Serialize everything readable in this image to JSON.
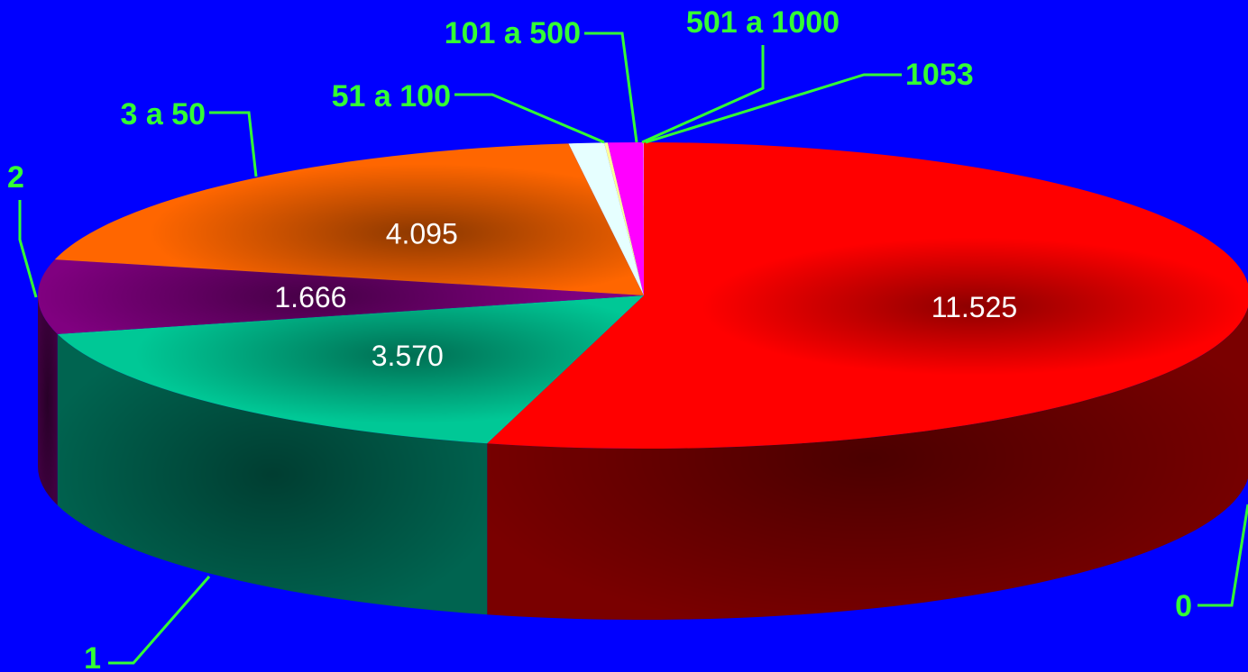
{
  "chart_data": {
    "type": "pie",
    "style": "3d",
    "title": "",
    "slices": [
      {
        "category": "0",
        "value": 11525,
        "value_label": "11.525",
        "color": "#ff0000",
        "side_color": "#7a0000"
      },
      {
        "category": "1",
        "value": 3570,
        "value_label": "3.570",
        "color": "#00c896",
        "side_color": "#006450"
      },
      {
        "category": "2",
        "value": 1666,
        "value_label": "1.666",
        "color": "#800080",
        "side_color": "#400040"
      },
      {
        "category": "3 a 50",
        "value": 4095,
        "value_label": "4.095",
        "color": "#ff6600",
        "side_color": "#803300"
      },
      {
        "category": "51 a 100",
        "value": 200,
        "value_label": "",
        "color": "#e6ffff",
        "side_color": "#9ac8c8"
      },
      {
        "category": "101 a 500",
        "value": 20,
        "value_label": "",
        "color": "#ffff99",
        "side_color": "#999960"
      },
      {
        "category": "501 a 1000",
        "value": 200,
        "value_label": "",
        "color": "#ff00ff",
        "side_color": "#800080"
      },
      {
        "category": "1053",
        "value": 2,
        "value_label": "",
        "color": "#ffffff",
        "side_color": "#999999"
      }
    ],
    "label_color": "#33ff33",
    "value_label_color": "#ffffff",
    "background": "#0000ff",
    "legend": "none"
  }
}
